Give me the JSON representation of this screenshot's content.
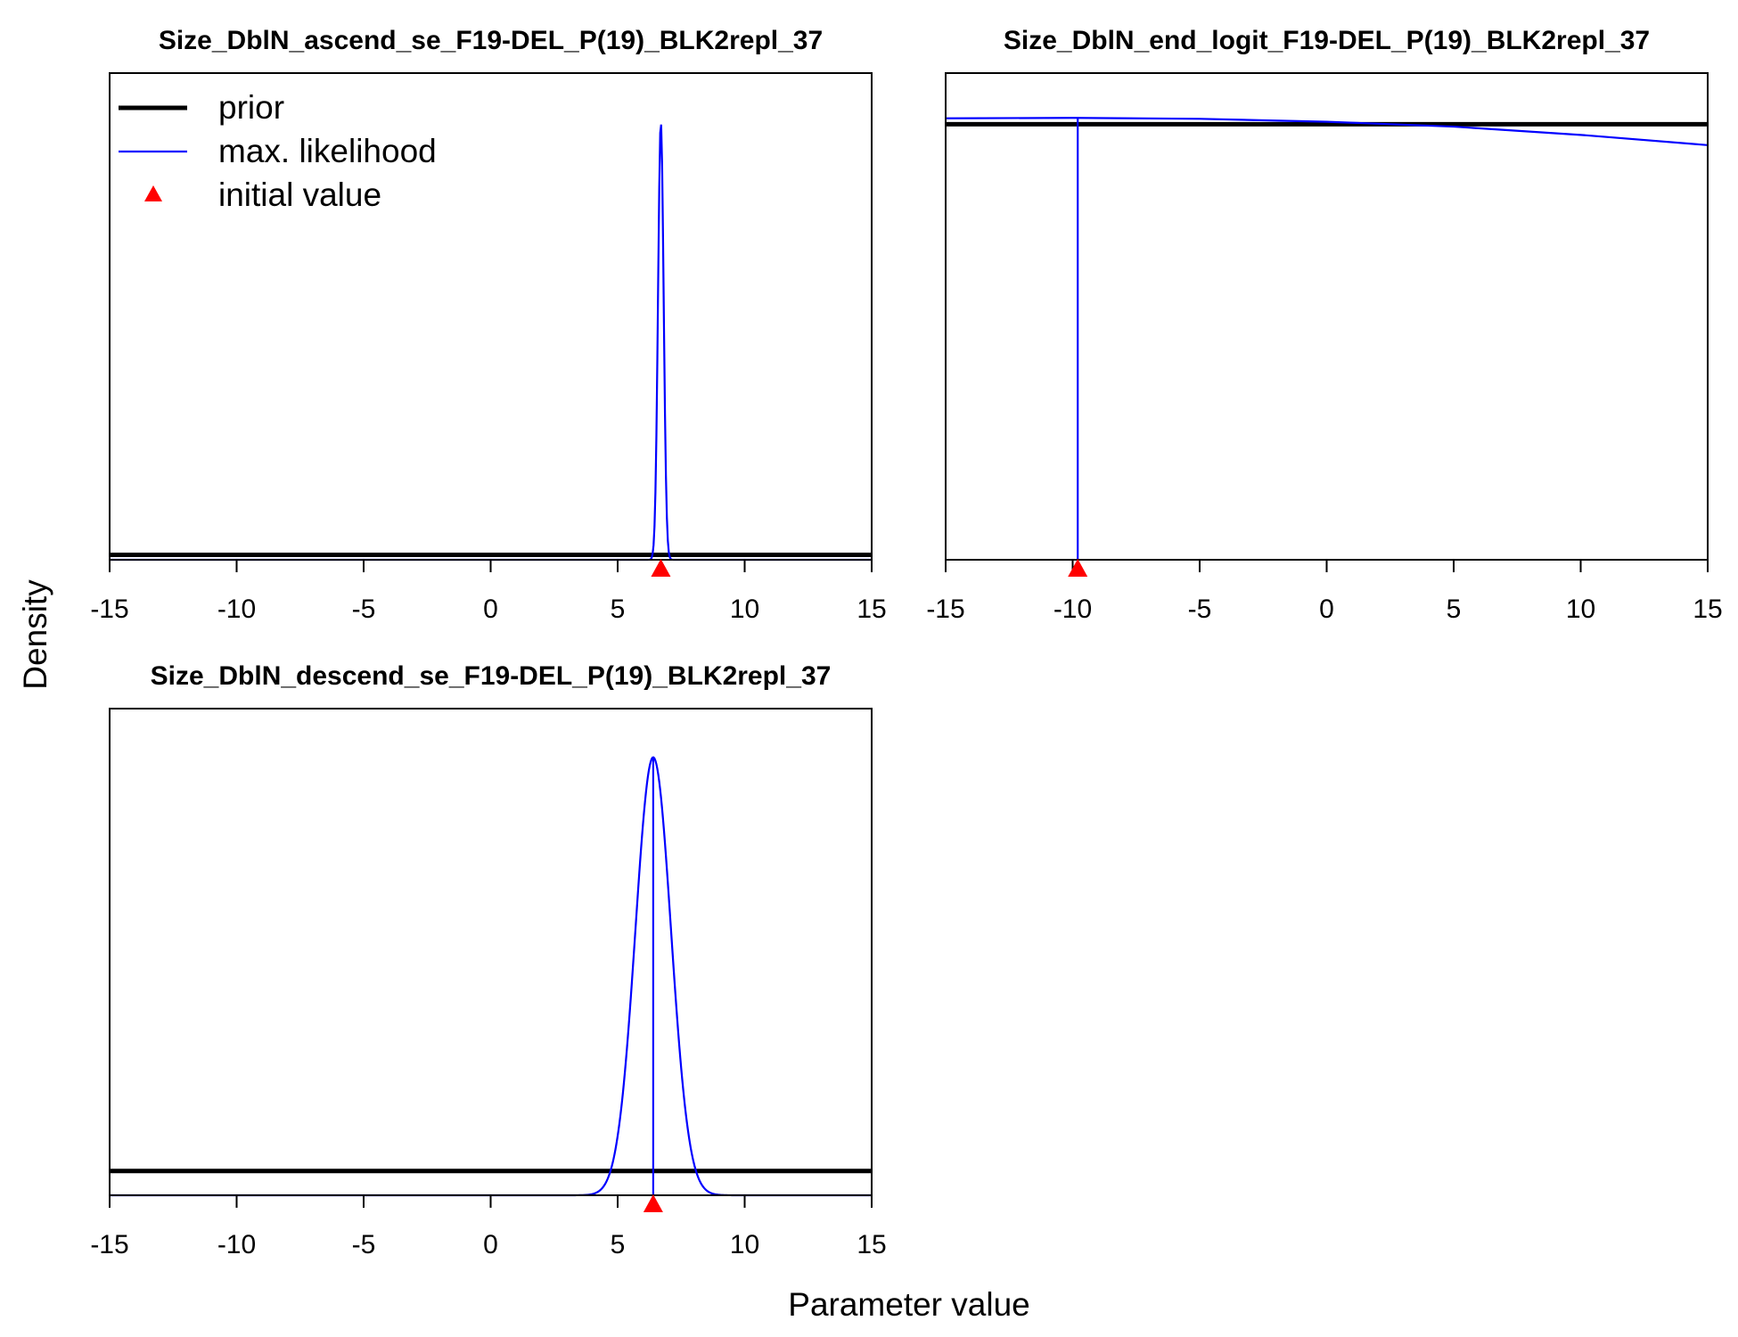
{
  "figure": {
    "ylabel": "Density",
    "xlabel": "Parameter value"
  },
  "legend": {
    "placement": "top-left",
    "entries": [
      {
        "label": "prior",
        "color": "#000000",
        "kind": "thick-line"
      },
      {
        "label": "max. likelihood",
        "color": "#0000ff",
        "kind": "line"
      },
      {
        "label": "initial value",
        "color": "#ff0000",
        "kind": "triangle"
      }
    ]
  },
  "chart_data": [
    {
      "type": "line",
      "title": "Size_DblN_ascend_se_F19-DEL_P(19)_BLK2repl_37",
      "xlim": [
        -15,
        15
      ],
      "xticks": [
        -15,
        -10,
        -5,
        0,
        5,
        10,
        15
      ],
      "ylim": [
        0,
        1
      ],
      "y_ticks_shown": false,
      "prior": {
        "kind": "flat",
        "density": 0.01
      },
      "max_likelihood": {
        "kind": "normal",
        "mean": 6.7,
        "sd": 0.11,
        "peak": 0.9
      },
      "mle_line": false,
      "initial_value": 6.7,
      "show_legend": true
    },
    {
      "type": "line",
      "title": "Size_DblN_end_logit_F19-DEL_P(19)_BLK2repl_37",
      "xlim": [
        -15,
        15
      ],
      "xticks": [
        -15,
        -10,
        -5,
        0,
        5,
        10,
        15
      ],
      "ylim": [
        0,
        1
      ],
      "y_ticks_shown": false,
      "prior": {
        "kind": "flat",
        "density": 0.895
      },
      "max_likelihood": {
        "kind": "points",
        "x": [
          -15,
          -10,
          -5,
          0,
          5,
          10,
          15
        ],
        "y": [
          0.907,
          0.908,
          0.906,
          0.9,
          0.89,
          0.873,
          0.852
        ]
      },
      "mle_line": true,
      "mle_value": -9.8,
      "mle_line_top": 0.908,
      "initial_value": -9.8,
      "show_legend": false
    },
    {
      "type": "line",
      "title": "Size_DblN_descend_se_F19-DEL_P(19)_BLK2repl_37",
      "xlim": [
        -15,
        15
      ],
      "xticks": [
        -15,
        -10,
        -5,
        0,
        5,
        10,
        15
      ],
      "ylim": [
        0,
        1
      ],
      "y_ticks_shown": false,
      "prior": {
        "kind": "flat",
        "density": 0.05
      },
      "max_likelihood": {
        "kind": "normal",
        "mean": 6.4,
        "sd": 0.7,
        "peak": 0.9
      },
      "mle_line": true,
      "mle_value": 6.4,
      "mle_line_top": 0.9,
      "initial_value": 6.4,
      "show_legend": false
    }
  ]
}
